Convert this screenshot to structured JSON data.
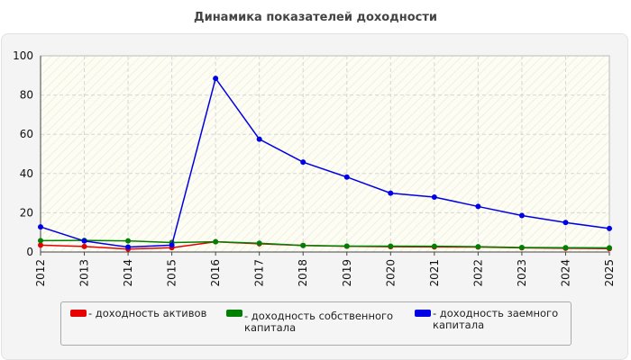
{
  "chart_data": {
    "type": "line",
    "title": "Динамика показателей доходности",
    "xlabel": "",
    "ylabel": "",
    "ylim": [
      0,
      100
    ],
    "yticks": [
      0,
      20,
      40,
      60,
      80,
      100
    ],
    "grid": true,
    "legend_position": "bottom",
    "x": [
      "2012",
      "2013",
      "2014",
      "2015",
      "2016",
      "2017",
      "2018",
      "2019",
      "2020",
      "2021",
      "2022",
      "2023",
      "2024",
      "2025"
    ],
    "series": [
      {
        "name": "- доходность активов",
        "color": "#e60000",
        "values": [
          3.5,
          2.8,
          1.5,
          2.2,
          5.2,
          4.2,
          3.3,
          2.9,
          2.7,
          2.6,
          2.5,
          2.1,
          1.9,
          1.7
        ]
      },
      {
        "name": "- доходность собственного капитала",
        "color": "#008000",
        "values": [
          5.8,
          5.9,
          5.7,
          4.8,
          5.2,
          4.5,
          3.3,
          3.0,
          3.0,
          2.9,
          2.7,
          2.3,
          2.2,
          2.1
        ]
      },
      {
        "name": "- доходность заемного капитала",
        "color": "#0000e6",
        "values": [
          12.8,
          5.6,
          2.5,
          3.5,
          88.5,
          57.5,
          45.8,
          38.2,
          30.0,
          28.0,
          23.2,
          18.6,
          15.0,
          12.0
        ]
      }
    ]
  }
}
